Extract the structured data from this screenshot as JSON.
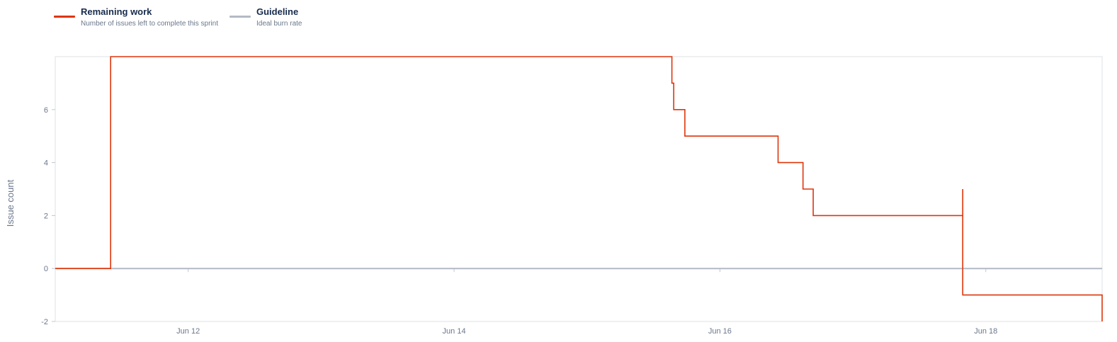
{
  "legend": {
    "remaining": {
      "title": "Remaining work",
      "description": "Number of issues left to complete this sprint",
      "color": "#de350b"
    },
    "guideline": {
      "title": "Guideline",
      "description": "Ideal burn rate",
      "color": "#b3bac5"
    }
  },
  "chart_data": {
    "type": "line",
    "ylabel": "Issue count",
    "xlabel": "",
    "title": "",
    "step": true,
    "xlim": [
      "2025-06-11T00:00",
      "2025-06-18T21:00"
    ],
    "ylim": [
      -2,
      8
    ],
    "y_ticks": [
      -2,
      0,
      2,
      4,
      6
    ],
    "x_ticks": [
      {
        "x": "2025-06-12T00:00",
        "label": "Jun 12"
      },
      {
        "x": "2025-06-14T00:00",
        "label": "Jun 14"
      },
      {
        "x": "2025-06-16T00:00",
        "label": "Jun 16"
      },
      {
        "x": "2025-06-18T00:00",
        "label": "Jun 18"
      }
    ],
    "baseline_color": "#b3bac5",
    "grid": false,
    "series": [
      {
        "name": "Remaining work",
        "color": "#de350b",
        "points": [
          {
            "x": "2025-06-11T00:00",
            "y": 0
          },
          {
            "x": "2025-06-11T10:00",
            "y": 0
          },
          {
            "x": "2025-06-11T10:00",
            "y": 8
          },
          {
            "x": "2025-06-15T15:20",
            "y": 8
          },
          {
            "x": "2025-06-15T15:20",
            "y": 7
          },
          {
            "x": "2025-06-15T15:40",
            "y": 7
          },
          {
            "x": "2025-06-15T15:40",
            "y": 6
          },
          {
            "x": "2025-06-15T17:40",
            "y": 6
          },
          {
            "x": "2025-06-15T17:40",
            "y": 5
          },
          {
            "x": "2025-06-16T10:30",
            "y": 5
          },
          {
            "x": "2025-06-16T10:30",
            "y": 4
          },
          {
            "x": "2025-06-16T15:00",
            "y": 4
          },
          {
            "x": "2025-06-16T15:00",
            "y": 3
          },
          {
            "x": "2025-06-16T16:50",
            "y": 3
          },
          {
            "x": "2025-06-16T16:50",
            "y": 2
          },
          {
            "x": "2025-06-17T19:50",
            "y": 2
          },
          {
            "x": "2025-06-17T19:50",
            "y": 3
          },
          {
            "x": "2025-06-17T19:50",
            "y": -1
          },
          {
            "x": "2025-06-18T21:00",
            "y": -1
          },
          {
            "x": "2025-06-18T21:00",
            "y": -2
          }
        ]
      }
    ]
  }
}
